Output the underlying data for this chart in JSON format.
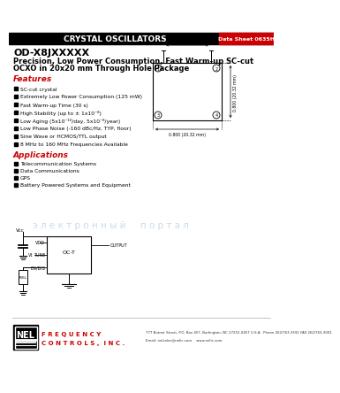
{
  "header_bg": "#000000",
  "header_text": "CRYSTAL OSCILLATORS",
  "header_text_color": "#ffffff",
  "datasheet_label": "Data Sheet 0635H",
  "datasheet_label_bg": "#cc0000",
  "datasheet_label_color": "#ffffff",
  "title_part": "OD-X8JXXXXX",
  "title_line1": "Precision, Low Power Consumption, Fast Warm-up SC-cut",
  "title_line2": "OCXO in 20x20 mm Through Hole Package",
  "title_color": "#000000",
  "features_title": "Features",
  "features_color": "#cc0000",
  "features": [
    "SC-cut crystal",
    "Extremely Low Power Consumption (125 mW)",
    "Fast Warm-up Time (30 s)",
    "High Stability (up to ± 1x10⁻⁸)",
    "Low Aging (5x10⁻¹⁰/day, 5x10⁻⁸/year)",
    "Low Phase Noise (-160 dBc/Hz, TYP, floor)",
    "Sine Wave or HCMOS/TTL output",
    "8 MHz to 160 MHz Frequencies Available"
  ],
  "applications_title": "Applications",
  "applications_color": "#cc0000",
  "applications": [
    "Telecommunication Systems",
    "Data Communications",
    "GPS",
    "Battery Powered Systems and Equipment"
  ],
  "nel_color": "#cc0000",
  "address_text": "777 Butner Street, P.O. Box 457, Burlington, NC 27215-0457 U.S.A.  Phone 262/763-3591 FAX 262/763-3001",
  "email_text": "Email: nelsales@nelic.com    www.nelic.com",
  "bg_color": "#ffffff",
  "watermark": "э л е к т р о н н ы й     п о р т а л"
}
